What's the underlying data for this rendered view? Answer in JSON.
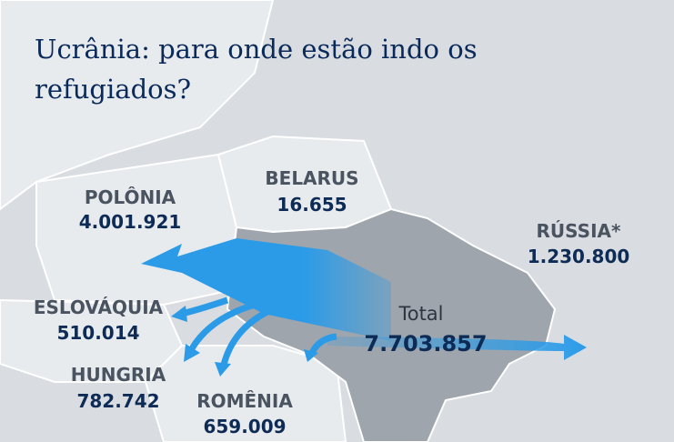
{
  "title": "Ucrânia: para onde estão indo os refugiados?",
  "countries": [
    {
      "name": "POLÔNIA",
      "value": "4.001.921"
    },
    {
      "name": "BELARUS",
      "value": "16.655"
    },
    {
      "name": "RÚSSIA*",
      "value": "1.230.800"
    },
    {
      "name": "ESLOVÁQUIA",
      "value": "510.014"
    },
    {
      "name": "HUNGRIA",
      "value": "782.742"
    },
    {
      "name": "ROMÊNIA",
      "value": "659.009"
    }
  ],
  "total": {
    "label": "Total",
    "value": "7.703.857"
  }
}
